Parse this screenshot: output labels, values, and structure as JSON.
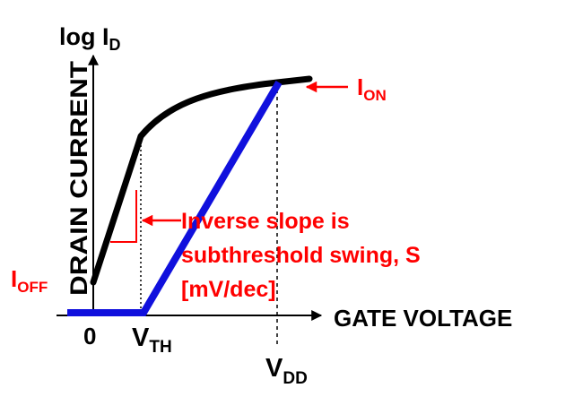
{
  "diagram": {
    "y_axis_title": {
      "main": "log I",
      "sub": "D"
    },
    "y_axis_label": "DRAIN CURRENT",
    "x_axis_label": "GATE VOLTAGE",
    "origin_label": "0",
    "vth_label": {
      "main": "V",
      "sub": "TH"
    },
    "vdd_label": {
      "main": "V",
      "sub": "DD"
    },
    "ion_label": {
      "main": "I",
      "sub": "ON"
    },
    "ioff_label": {
      "main": "I",
      "sub": "OFF"
    },
    "annotation_lines": [
      "Inverse slope is",
      "subthreshold swing, S",
      "[mV/dec]"
    ]
  },
  "colors": {
    "axis": "#000000",
    "curve": "#000000",
    "linear_line": "#1010dd",
    "annotation": "#ff0000"
  }
}
